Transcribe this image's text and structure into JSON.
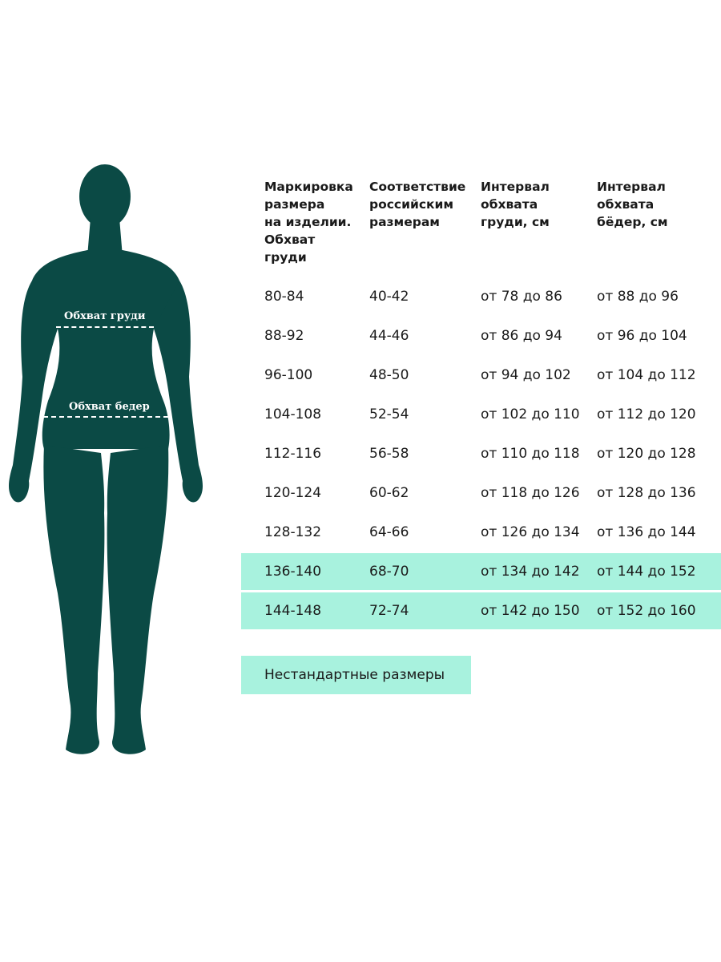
{
  "figure": {
    "chest_label": "Обхват груди",
    "hip_label": "Обхват бедер",
    "color": "#0b4a45"
  },
  "table": {
    "headers": [
      "Маркировка\nразмера\nна изделии.\nОбхват\nгруди",
      "Соответствие\nроссийским\nразмерам",
      "Интервал\nобхвата\nгруди, см",
      "Интервал\nобхвата\nбёдер, см"
    ],
    "rows": [
      [
        "80-84",
        "40-42",
        "от 78 до 86",
        "от 88 до 96"
      ],
      [
        "88-92",
        "44-46",
        "от 86 до 94",
        "от 96 до 104"
      ],
      [
        "96-100",
        "48-50",
        "от 94 до 102",
        "от 104 до 112"
      ],
      [
        "104-108",
        "52-54",
        "от 102 до 110",
        "от 112 до 120"
      ],
      [
        "112-116",
        "56-58",
        "от 110 до 118",
        "от 120 до 128"
      ],
      [
        "120-124",
        "60-62",
        "от 118 до 126",
        "от 128 до 136"
      ],
      [
        "128-132",
        "64-66",
        "от 126 до 134",
        "от 136 до 144"
      ],
      [
        "136-140",
        "68-70",
        "от 134 до 142",
        "от 144 до 152"
      ],
      [
        "144-148",
        "72-74",
        "от 142 до 150",
        "от 152 до 160"
      ]
    ],
    "highlighted_rows": [
      7,
      8
    ],
    "highlight_color": "#a8f2de"
  },
  "nonstandard_label": "Нестандартные размеры"
}
